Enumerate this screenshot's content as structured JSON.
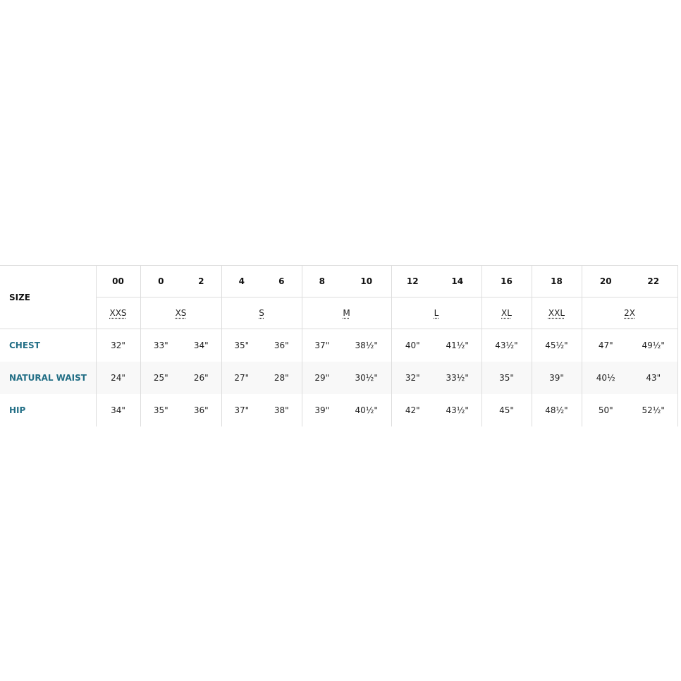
{
  "header": {
    "size_label": "SIZE",
    "numeric_sizes": [
      "00",
      "0",
      "2",
      "4",
      "6",
      "8",
      "10",
      "12",
      "14",
      "16",
      "18",
      "20",
      "22"
    ],
    "letter_sizes": [
      "XXS",
      "XS",
      "S",
      "M",
      "L",
      "XL",
      "XXL",
      "2X"
    ]
  },
  "rows": [
    {
      "label": "CHEST",
      "values": [
        "32\"",
        "33\"",
        "34\"",
        "35\"",
        "36\"",
        "37\"",
        "38½\"",
        "40\"",
        "41½\"",
        "43½\"",
        "45½\"",
        "47\"",
        "49½\""
      ]
    },
    {
      "label": "NATURAL WAIST",
      "values": [
        "24\"",
        "25\"",
        "26\"",
        "27\"",
        "28\"",
        "29\"",
        "30½\"",
        "32\"",
        "33½\"",
        "35\"",
        "39\"",
        "40½",
        "43\""
      ]
    },
    {
      "label": "HIP",
      "values": [
        "34\"",
        "35\"",
        "36\"",
        "37\"",
        "38\"",
        "39\"",
        "40½\"",
        "42\"",
        "43½\"",
        "45\"",
        "48½\"",
        "50\"",
        "52½\""
      ]
    }
  ],
  "colors": {
    "row_label": "#236f86",
    "border": "#dddddd",
    "alt_row": "#f8f8f8"
  }
}
